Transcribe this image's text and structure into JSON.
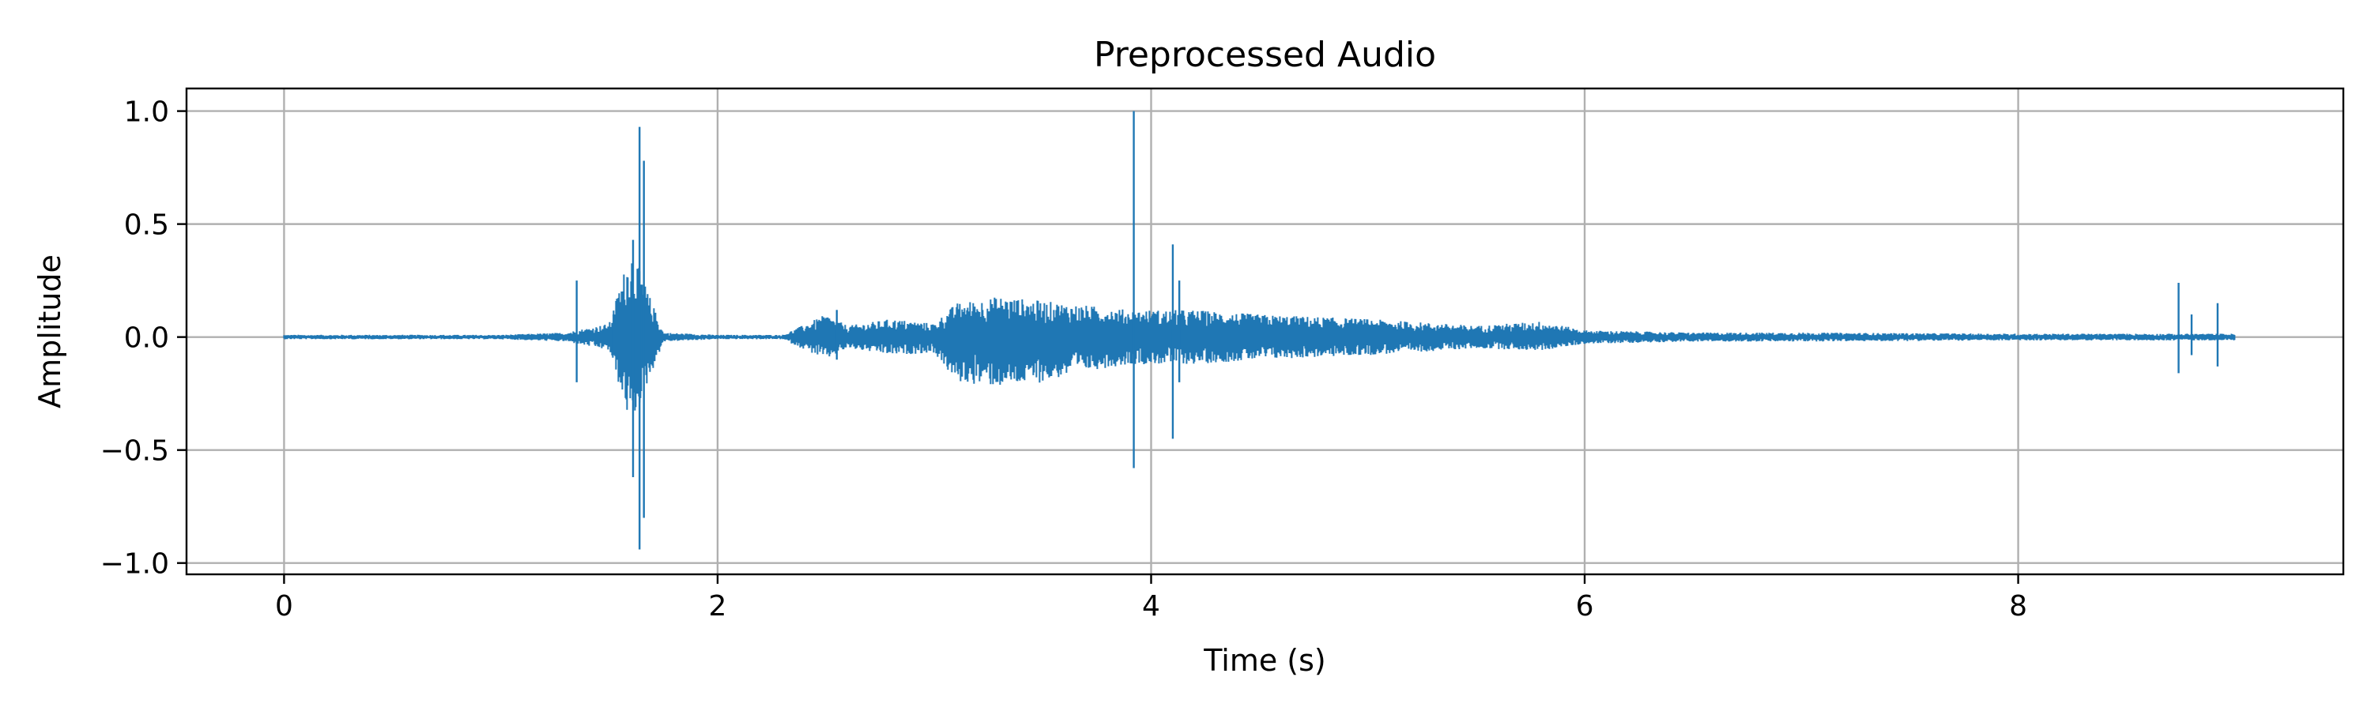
{
  "chart_data": {
    "type": "line",
    "title": "Preprocessed Audio",
    "xlabel": "Time (s)",
    "ylabel": "Amplitude",
    "xlim": [
      -0.45,
      9.5
    ],
    "ylim": [
      -1.05,
      1.1
    ],
    "xticks": [
      0,
      2,
      4,
      6,
      8
    ],
    "xtick_labels": [
      "0",
      "2",
      "4",
      "6",
      "8"
    ],
    "yticks": [
      1.0,
      0.5,
      0.0,
      -0.5,
      -1.0
    ],
    "ytick_labels": [
      "1.0",
      "0.5",
      "0.0",
      "−0.5",
      "−1.0"
    ],
    "grid": true,
    "legend": "none",
    "line_color": "#1f77b4",
    "grid_color": "#b0b0b0",
    "envelope": {
      "time": [
        0.0,
        0.5,
        1.0,
        1.3,
        1.5,
        1.6,
        1.75,
        2.0,
        2.3,
        2.5,
        2.6,
        2.8,
        3.0,
        3.1,
        3.3,
        3.5,
        3.7,
        3.9,
        4.2,
        4.5,
        5.0,
        5.5,
        5.8,
        6.0,
        6.5,
        7.0,
        8.0,
        8.7,
        9.0
      ],
      "max": [
        0.01,
        0.01,
        0.01,
        0.02,
        0.06,
        0.4,
        0.02,
        0.01,
        0.01,
        0.1,
        0.05,
        0.08,
        0.06,
        0.15,
        0.18,
        0.16,
        0.14,
        0.12,
        0.12,
        0.1,
        0.08,
        0.05,
        0.07,
        0.03,
        0.02,
        0.02,
        0.015,
        0.015,
        0.015
      ],
      "min": [
        -0.01,
        -0.01,
        -0.01,
        -0.02,
        -0.06,
        -0.4,
        -0.02,
        -0.01,
        -0.01,
        -0.1,
        -0.05,
        -0.08,
        -0.07,
        -0.2,
        -0.22,
        -0.2,
        -0.15,
        -0.12,
        -0.12,
        -0.1,
        -0.08,
        -0.05,
        -0.06,
        -0.03,
        -0.02,
        -0.02,
        -0.015,
        -0.015,
        -0.015
      ]
    },
    "spikes": [
      {
        "t": 1.35,
        "max": 0.25,
        "min": -0.2
      },
      {
        "t": 1.52,
        "max": 0.1,
        "min": -0.08
      },
      {
        "t": 1.61,
        "max": 0.43,
        "min": -0.62
      },
      {
        "t": 1.64,
        "max": 0.93,
        "min": -0.94
      },
      {
        "t": 1.66,
        "max": 0.78,
        "min": -0.8
      },
      {
        "t": 2.55,
        "max": 0.12,
        "min": -0.1
      },
      {
        "t": 3.92,
        "max": 1.0,
        "min": -0.58
      },
      {
        "t": 4.1,
        "max": 0.41,
        "min": -0.45
      },
      {
        "t": 4.13,
        "max": 0.25,
        "min": -0.2
      },
      {
        "t": 8.74,
        "max": 0.24,
        "min": -0.16
      },
      {
        "t": 8.8,
        "max": 0.1,
        "min": -0.08
      },
      {
        "t": 8.92,
        "max": 0.15,
        "min": -0.13
      }
    ],
    "duration": 9.0
  }
}
